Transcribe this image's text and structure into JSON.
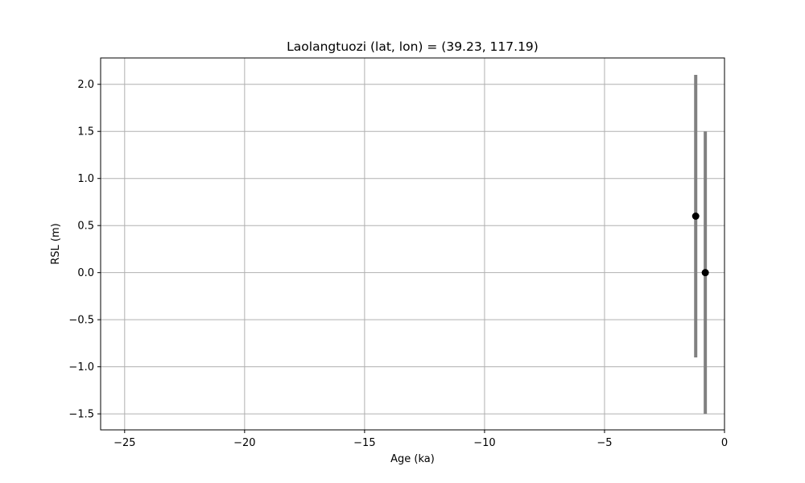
{
  "chart_data": {
    "type": "scatter",
    "title": "Laolangtuozi (lat, lon) = (39.23, 117.19)",
    "xlabel": "Age (ka)",
    "ylabel": "RSL (m)",
    "xlim": [
      -26,
      0
    ],
    "ylim": [
      -1.67,
      2.28
    ],
    "x_ticks": [
      -25,
      -20,
      -15,
      -10,
      -5,
      0
    ],
    "x_tick_labels": [
      "−25",
      "−20",
      "−15",
      "−10",
      "−5",
      "0"
    ],
    "y_ticks": [
      -1.5,
      -1.0,
      -0.5,
      0.0,
      0.5,
      1.0,
      1.5,
      2.0
    ],
    "y_tick_labels": [
      "−1.5",
      "−1.0",
      "−0.5",
      "0.0",
      "0.5",
      "1.0",
      "1.5",
      "2.0"
    ],
    "grid": true,
    "points": [
      {
        "x": -1.2,
        "y": 0.6,
        "y_low": -0.9,
        "y_high": 2.1
      },
      {
        "x": -0.8,
        "y": 0.0,
        "y_low": -1.5,
        "y_high": 1.5
      }
    ],
    "colors": {
      "marker": "#000000",
      "errorbar": "#808080",
      "grid": "#b0b0b0",
      "axes": "#000000"
    }
  }
}
